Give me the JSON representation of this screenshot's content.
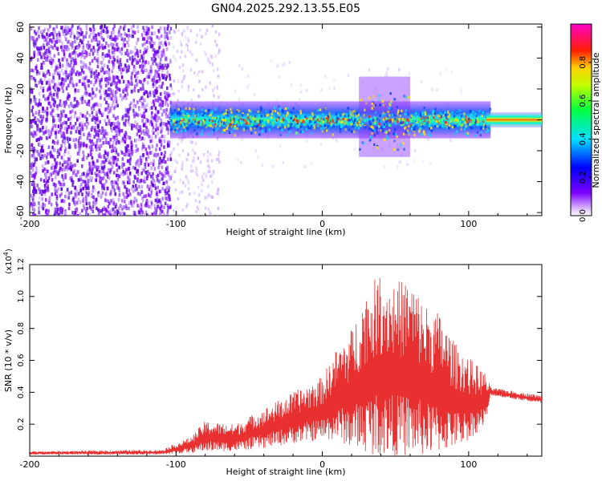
{
  "figure": {
    "title": "GN04.2025.292.13.55.E05"
  },
  "colors": {
    "snr_series": "#e83030",
    "axis": "#000000",
    "background": "#ffffff"
  },
  "chart_data": [
    {
      "type": "heatmap",
      "title": "GN04.2025.292.13.55.E05",
      "xlabel": "Height of straight line (km)",
      "ylabel": "Frequency (Hz)",
      "xlim": [
        -200,
        150
      ],
      "ylim": [
        -62,
        62
      ],
      "x_ticks": [
        -200,
        -100,
        0,
        100
      ],
      "y_ticks": [
        -60,
        -40,
        -20,
        0,
        20,
        40,
        60
      ],
      "colorbar": {
        "label": "Normalized spectral amplitude",
        "range": [
          0,
          1
        ],
        "ticks": [
          "0.0",
          "0.2",
          "0.4",
          "0.6",
          "0.8"
        ],
        "colormap": "rainbow (violet → blue → cyan → green → yellow → red → magenta)"
      },
      "regions": [
        {
          "x": [
            -200,
            -104
          ],
          "freq": [
            -62,
            62
          ],
          "amplitude": 0.1,
          "texture": "broadband noise"
        },
        {
          "x": [
            -104,
            -75
          ],
          "freq": [
            -62,
            62
          ],
          "amplitude": 0.05,
          "texture": "sparse speckle"
        },
        {
          "x": [
            -104,
            115
          ],
          "freq": [
            -12,
            12
          ],
          "amplitude": 0.45,
          "texture": "signal band centred near 0 Hz"
        },
        {
          "x": [
            25,
            60
          ],
          "freq": [
            -25,
            30
          ],
          "amplitude": 0.15,
          "texture": "broadened band"
        },
        {
          "x": [
            115,
            150
          ],
          "freq": [
            -3,
            3
          ],
          "amplitude": 0.9,
          "texture": "narrow strong line"
        }
      ]
    },
    {
      "type": "line",
      "xlabel": "Height of straight line (km)",
      "ylabel": "SNR (10 * v/v)",
      "y_multiplier": "(x10^4)",
      "xlim": [
        -200,
        150
      ],
      "ylim": [
        0,
        1.2
      ],
      "x_ticks": [
        -200,
        -100,
        0,
        100
      ],
      "y_ticks": [
        "0.2",
        "0.4",
        "0.6",
        "0.8",
        "1.0",
        "1.2"
      ],
      "envelope": {
        "x": [
          -200,
          -110,
          -90,
          -80,
          -60,
          -40,
          -20,
          0,
          10,
          20,
          30,
          40,
          50,
          60,
          70,
          80,
          90,
          100,
          112,
          115,
          150
        ],
        "min": [
          0.01,
          0.01,
          0.02,
          0.03,
          0.03,
          0.05,
          0.08,
          0.1,
          0.1,
          0.05,
          0.02,
          0.0,
          0.0,
          0.0,
          0.0,
          0.02,
          0.05,
          0.1,
          0.2,
          0.38,
          0.33
        ],
        "max": [
          0.03,
          0.04,
          0.12,
          0.22,
          0.2,
          0.3,
          0.4,
          0.5,
          0.68,
          0.8,
          1.05,
          1.15,
          1.1,
          1.12,
          0.96,
          0.9,
          0.72,
          0.62,
          0.52,
          0.43,
          0.38
        ]
      }
    }
  ]
}
